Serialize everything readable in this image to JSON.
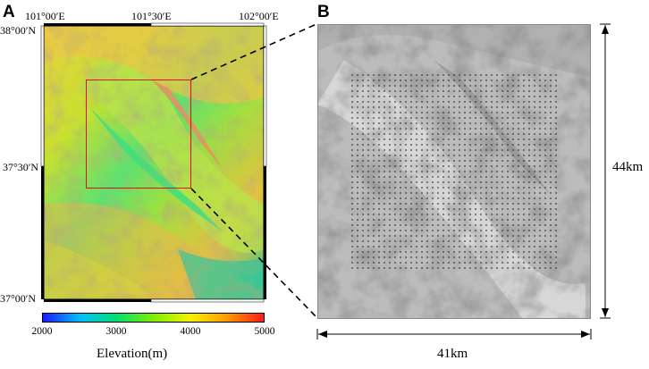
{
  "panel_a": {
    "label": "A",
    "lon_ticks": [
      "101°00′E",
      "101°30′E",
      "102°00′E"
    ],
    "lat_ticks": [
      "38°00′N",
      "37°30′N",
      "37°00′N"
    ],
    "colorbar": {
      "ticks": [
        "2000",
        "3000",
        "4000",
        "5000"
      ],
      "title": "Elevation(m)",
      "colors": [
        "#1a1aff",
        "#00bfff",
        "#00e070",
        "#7cf000",
        "#f7f000",
        "#ff9a00",
        "#ff1a1a"
      ]
    },
    "highlight_box_color": "#e01010"
  },
  "panel_b": {
    "label": "B",
    "height_dimension": "44km",
    "width_dimension": "41km"
  }
}
